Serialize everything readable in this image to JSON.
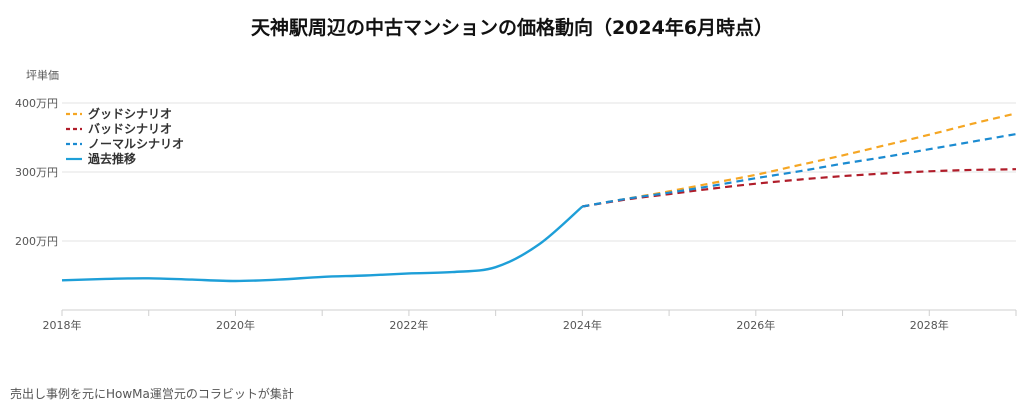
{
  "chart_data": {
    "type": "line",
    "title": "天神駅周辺の中古マンションの価格動向（2024年6月時点）",
    "ylabel": "坪単価",
    "xlabel": "",
    "xlim": [
      2018,
      2029
    ],
    "ylim": [
      100,
      400
    ],
    "y_ticks": [
      200,
      300,
      400
    ],
    "y_tick_labels": [
      "200万円",
      "300万円",
      "400万円"
    ],
    "x_ticks": [
      2018,
      2020,
      2022,
      2024,
      2026,
      2028
    ],
    "x_tick_labels": [
      "2018年",
      "2020年",
      "2022年",
      "2024年",
      "2026年",
      "2028年"
    ],
    "grid": true,
    "legend_position": "top-left",
    "series": [
      {
        "name": "グッドシナリオ",
        "style": "dashed",
        "color": "#f5a623",
        "x": [
          2024,
          2024.5,
          2025,
          2025.5,
          2026,
          2026.5,
          2027,
          2027.5,
          2028,
          2028.5,
          2029
        ],
        "y": [
          250,
          261,
          272,
          284,
          296,
          310,
          324,
          339,
          354,
          370,
          385
        ]
      },
      {
        "name": "バッドシナリオ",
        "style": "dashed",
        "color": "#b01d2a",
        "x": [
          2024,
          2024.5,
          2025,
          2025.5,
          2026,
          2026.5,
          2027,
          2027.5,
          2028,
          2028.5,
          2029
        ],
        "y": [
          250,
          260,
          268,
          276,
          283,
          289,
          294,
          298,
          301,
          303,
          304
        ]
      },
      {
        "name": "ノーマルシナリオ",
        "style": "dashed",
        "color": "#1b8bd1",
        "x": [
          2024,
          2024.5,
          2025,
          2025.5,
          2026,
          2026.5,
          2027,
          2027.5,
          2028,
          2028.5,
          2029
        ],
        "y": [
          250,
          261,
          270,
          280,
          291,
          301,
          312,
          322,
          333,
          344,
          355
        ]
      },
      {
        "name": "過去推移",
        "style": "solid",
        "color": "#1e9fd8",
        "x": [
          2018,
          2018.5,
          2019,
          2019.5,
          2020,
          2020.5,
          2021,
          2021.5,
          2022,
          2022.5,
          2023,
          2023.5,
          2024
        ],
        "y": [
          143,
          145,
          146,
          144,
          142,
          144,
          148,
          150,
          153,
          155,
          162,
          195,
          250
        ]
      }
    ]
  },
  "footer": {
    "text": "売出し事例を元にHowMa運営元のコラビットが集計"
  }
}
